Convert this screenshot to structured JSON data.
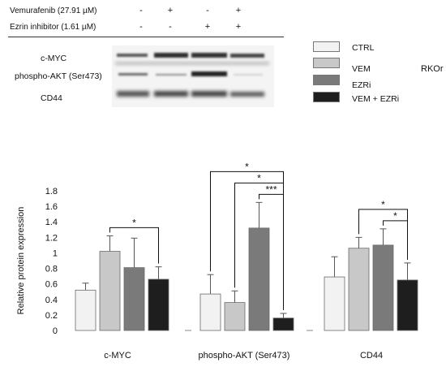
{
  "conditions": [
    {
      "label": "Vemurafenib (27.91 µM)",
      "signs": [
        "-",
        "+",
        "-",
        "+"
      ]
    },
    {
      "label": "Ezrin inhibitor (1.61 µM)",
      "signs": [
        "-",
        "-",
        "+",
        "+"
      ]
    }
  ],
  "blot_labels": [
    "c-MYC",
    "phospho-AKT (Ser473)",
    "CD44"
  ],
  "legend": [
    {
      "label": "CTRL",
      "color": "#f2f2f2"
    },
    {
      "label": "VEM",
      "color": "#c8c8c8"
    },
    {
      "label": "EZRi",
      "color": "#7a7a7a"
    },
    {
      "label": "VEM + EZRi",
      "color": "#1e1e1e"
    }
  ],
  "cell_line": "RKOr",
  "chart_data": {
    "type": "bar",
    "ylabel": "Relative protein expression",
    "ylim": [
      0,
      1.8
    ],
    "yticks": [
      "0",
      "0.2",
      "0.4",
      "0.6",
      "0.8",
      "1",
      "1.2",
      "1.4",
      "1.6",
      "1.8"
    ],
    "groups": [
      {
        "label": "c-MYC",
        "values": [
          0.52,
          1.02,
          0.81,
          0.66
        ],
        "errors": [
          0.09,
          0.2,
          0.38,
          0.16
        ],
        "significance": [
          {
            "from": 1,
            "to": 3,
            "label": "*"
          }
        ]
      },
      {
        "label": "phospho-AKT (Ser473)",
        "values": [
          0.47,
          0.36,
          1.32,
          0.16
        ],
        "errors": [
          0.25,
          0.15,
          0.33,
          0.06
        ],
        "significance": [
          {
            "from": 0,
            "to": 3,
            "label": "*"
          },
          {
            "from": 1,
            "to": 3,
            "label": "*"
          },
          {
            "from": 2,
            "to": 3,
            "label": "***"
          }
        ]
      },
      {
        "label": "CD44",
        "values": [
          0.69,
          1.06,
          1.1,
          0.65
        ],
        "errors": [
          0.26,
          0.14,
          0.21,
          0.22
        ],
        "significance": [
          {
            "from": 1,
            "to": 3,
            "label": "*"
          },
          {
            "from": 2,
            "to": 3,
            "label": "*"
          }
        ]
      }
    ],
    "series_colors": [
      "#f2f2f2",
      "#c8c8c8",
      "#7a7a7a",
      "#1e1e1e"
    ]
  }
}
